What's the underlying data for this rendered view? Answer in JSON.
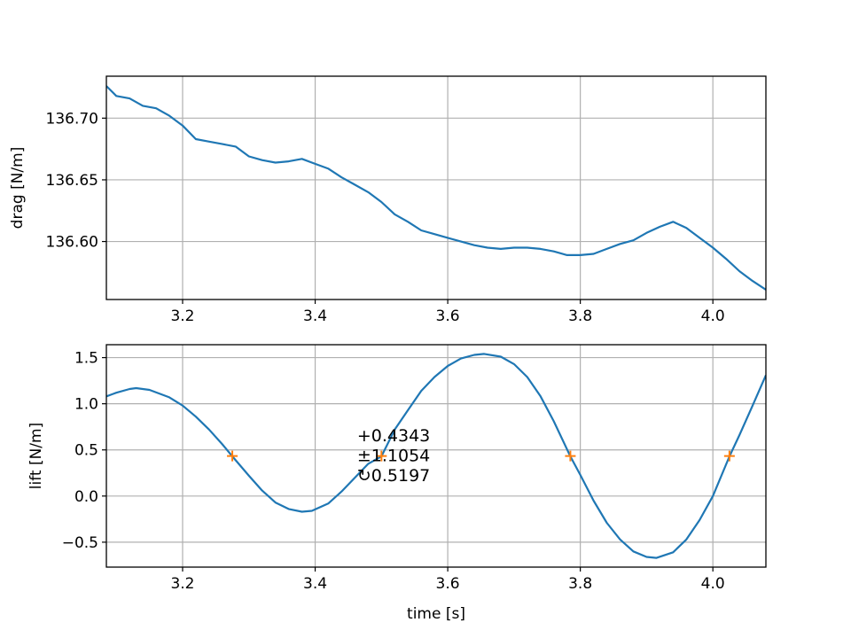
{
  "chart_data": [
    {
      "type": "line",
      "ylabel": "drag [N/m]",
      "xlabel": "",
      "xlim": [
        3.085,
        4.08
      ],
      "ylim": [
        136.553,
        136.734
      ],
      "xticks": [
        3.2,
        3.4,
        3.6,
        3.8,
        4.0
      ],
      "xtick_labels": [
        "3.2",
        "3.4",
        "3.6",
        "3.8",
        "4.0"
      ],
      "yticks": [
        136.6,
        136.65,
        136.7
      ],
      "ytick_labels": [
        "136.60",
        "136.65",
        "136.70"
      ],
      "grid": true,
      "series": [
        {
          "color": "#1f77b4",
          "x": [
            3.085,
            3.1,
            3.12,
            3.14,
            3.16,
            3.18,
            3.2,
            3.22,
            3.24,
            3.26,
            3.28,
            3.3,
            3.32,
            3.34,
            3.36,
            3.38,
            3.4,
            3.42,
            3.44,
            3.46,
            3.48,
            3.5,
            3.52,
            3.54,
            3.56,
            3.58,
            3.6,
            3.62,
            3.64,
            3.66,
            3.68,
            3.7,
            3.72,
            3.74,
            3.76,
            3.78,
            3.8,
            3.82,
            3.84,
            3.86,
            3.88,
            3.9,
            3.92,
            3.94,
            3.96,
            3.98,
            4.0,
            4.02,
            4.04,
            4.06,
            4.08
          ],
          "y": [
            136.726,
            136.718,
            136.716,
            136.71,
            136.708,
            136.702,
            136.694,
            136.683,
            136.681,
            136.679,
            136.677,
            136.669,
            136.666,
            136.664,
            136.665,
            136.667,
            136.663,
            136.659,
            136.652,
            136.646,
            136.64,
            136.632,
            136.622,
            136.616,
            136.609,
            136.606,
            136.603,
            136.6,
            136.597,
            136.595,
            136.594,
            136.595,
            136.595,
            136.594,
            136.592,
            136.589,
            136.589,
            136.59,
            136.594,
            136.598,
            136.601,
            136.607,
            136.612,
            136.616,
            136.611,
            136.603,
            136.595,
            136.586,
            136.576,
            136.568,
            136.561
          ]
        }
      ]
    },
    {
      "type": "line",
      "ylabel": "lift [N/m]",
      "xlabel": "time [s]",
      "xlim": [
        3.085,
        4.08
      ],
      "ylim": [
        -0.77,
        1.64
      ],
      "xticks": [
        3.2,
        3.4,
        3.6,
        3.8,
        4.0
      ],
      "xtick_labels": [
        "3.2",
        "3.4",
        "3.6",
        "3.8",
        "4.0"
      ],
      "yticks": [
        -0.5,
        0.0,
        0.5,
        1.0,
        1.5
      ],
      "ytick_labels": [
        "−0.5",
        "0.0",
        "0.5",
        "1.0",
        "1.5"
      ],
      "grid": true,
      "series": [
        {
          "color": "#1f77b4",
          "x": [
            3.085,
            3.1,
            3.12,
            3.13,
            3.15,
            3.18,
            3.2,
            3.22,
            3.24,
            3.26,
            3.275,
            3.3,
            3.32,
            3.34,
            3.36,
            3.38,
            3.395,
            3.42,
            3.44,
            3.46,
            3.48,
            3.5,
            3.52,
            3.54,
            3.56,
            3.58,
            3.6,
            3.62,
            3.64,
            3.655,
            3.68,
            3.7,
            3.72,
            3.74,
            3.76,
            3.785,
            3.8,
            3.82,
            3.84,
            3.86,
            3.88,
            3.9,
            3.915,
            3.94,
            3.96,
            3.98,
            4.0,
            4.025,
            4.04,
            4.06,
            4.08
          ],
          "y": [
            1.08,
            1.12,
            1.16,
            1.17,
            1.15,
            1.07,
            0.98,
            0.86,
            0.72,
            0.56,
            0.43,
            0.22,
            0.06,
            -0.07,
            -0.14,
            -0.17,
            -0.16,
            -0.08,
            0.05,
            0.2,
            0.35,
            0.43,
            0.72,
            0.93,
            1.14,
            1.29,
            1.41,
            1.49,
            1.53,
            1.54,
            1.51,
            1.43,
            1.29,
            1.08,
            0.81,
            0.43,
            0.23,
            -0.05,
            -0.29,
            -0.47,
            -0.6,
            -0.66,
            -0.67,
            -0.61,
            -0.47,
            -0.26,
            0.0,
            0.43,
            0.66,
            0.98,
            1.31
          ]
        },
        {
          "color": "#ff7f0e",
          "marker": "+",
          "x": [
            3.275,
            3.5,
            3.785,
            4.025
          ],
          "y": [
            0.4343,
            0.4343,
            0.4343,
            0.4343
          ]
        }
      ],
      "annotation": {
        "lines": [
          "+0.4343",
          "±1.1054",
          "↻0.5197"
        ],
        "x": 3.585,
        "y": 0.4343
      }
    }
  ]
}
